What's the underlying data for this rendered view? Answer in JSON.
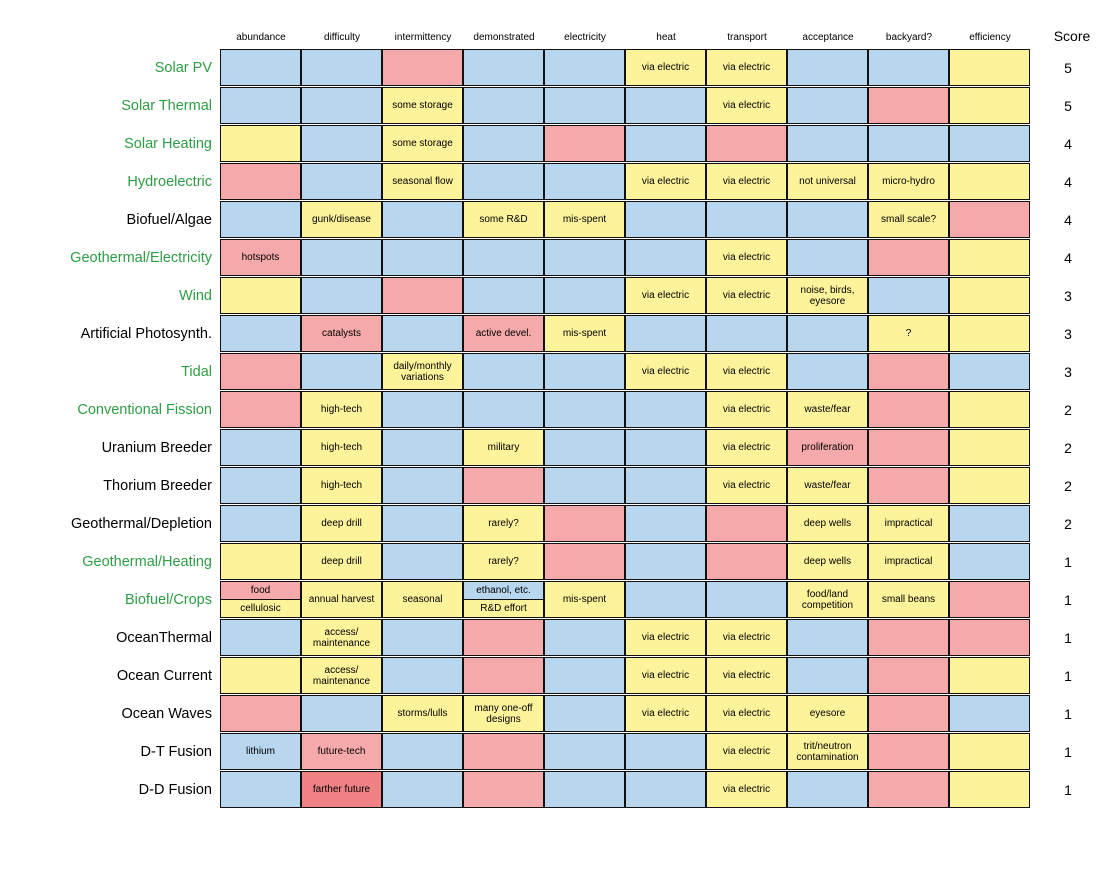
{
  "colors": {
    "B": "#b8d6ee",
    "Y": "#fdf39b",
    "R": "#f6a9aa",
    "D": "#f08285",
    "label_green": "#2e9d45",
    "label_black": "#000000"
  },
  "chart_data": {
    "type": "table",
    "title": "",
    "score_header": "Score",
    "columns": [
      "abundance",
      "difficulty",
      "intermittency",
      "demonstrated",
      "electricity",
      "heat",
      "transport",
      "acceptance",
      "backyard?",
      "efficiency"
    ],
    "legend_color_meaning": {
      "B": "blue",
      "Y": "yellow",
      "R": "red",
      "D": "dark red"
    },
    "rows": [
      {
        "name": "Solar PV",
        "label_color": "green",
        "score": "5",
        "cells": [
          {
            "c": "B",
            "t": ""
          },
          {
            "c": "B",
            "t": ""
          },
          {
            "c": "R",
            "t": ""
          },
          {
            "c": "B",
            "t": ""
          },
          {
            "c": "B",
            "t": ""
          },
          {
            "c": "Y",
            "t": "via electric"
          },
          {
            "c": "Y",
            "t": "via electric"
          },
          {
            "c": "B",
            "t": ""
          },
          {
            "c": "B",
            "t": ""
          },
          {
            "c": "Y",
            "t": ""
          }
        ]
      },
      {
        "name": "Solar Thermal",
        "label_color": "green",
        "score": "5",
        "cells": [
          {
            "c": "B",
            "t": ""
          },
          {
            "c": "B",
            "t": ""
          },
          {
            "c": "Y",
            "t": "some storage"
          },
          {
            "c": "B",
            "t": ""
          },
          {
            "c": "B",
            "t": ""
          },
          {
            "c": "B",
            "t": ""
          },
          {
            "c": "Y",
            "t": "via electric"
          },
          {
            "c": "B",
            "t": ""
          },
          {
            "c": "R",
            "t": ""
          },
          {
            "c": "Y",
            "t": ""
          }
        ]
      },
      {
        "name": "Solar Heating",
        "label_color": "green",
        "score": "4",
        "cells": [
          {
            "c": "Y",
            "t": ""
          },
          {
            "c": "B",
            "t": ""
          },
          {
            "c": "Y",
            "t": "some storage"
          },
          {
            "c": "B",
            "t": ""
          },
          {
            "c": "R",
            "t": ""
          },
          {
            "c": "B",
            "t": ""
          },
          {
            "c": "R",
            "t": ""
          },
          {
            "c": "B",
            "t": ""
          },
          {
            "c": "B",
            "t": ""
          },
          {
            "c": "B",
            "t": ""
          }
        ]
      },
      {
        "name": "Hydroelectric",
        "label_color": "green",
        "score": "4",
        "cells": [
          {
            "c": "R",
            "t": ""
          },
          {
            "c": "B",
            "t": ""
          },
          {
            "c": "Y",
            "t": "seasonal flow"
          },
          {
            "c": "B",
            "t": ""
          },
          {
            "c": "B",
            "t": ""
          },
          {
            "c": "Y",
            "t": "via electric"
          },
          {
            "c": "Y",
            "t": "via electric"
          },
          {
            "c": "Y",
            "t": "not universal"
          },
          {
            "c": "Y",
            "t": "micro-hydro"
          },
          {
            "c": "Y",
            "t": ""
          }
        ]
      },
      {
        "name": "Biofuel/Algae",
        "label_color": "black",
        "score": "4",
        "cells": [
          {
            "c": "B",
            "t": ""
          },
          {
            "c": "Y",
            "t": "gunk/disease"
          },
          {
            "c": "B",
            "t": ""
          },
          {
            "c": "Y",
            "t": "some R&D"
          },
          {
            "c": "Y",
            "t": "mis-spent"
          },
          {
            "c": "B",
            "t": ""
          },
          {
            "c": "B",
            "t": ""
          },
          {
            "c": "B",
            "t": ""
          },
          {
            "c": "Y",
            "t": "small scale?"
          },
          {
            "c": "R",
            "t": ""
          }
        ]
      },
      {
        "name": "Geothermal/Electricity",
        "label_color": "green",
        "score": "4",
        "cells": [
          {
            "c": "R",
            "t": "hotspots"
          },
          {
            "c": "B",
            "t": ""
          },
          {
            "c": "B",
            "t": ""
          },
          {
            "c": "B",
            "t": ""
          },
          {
            "c": "B",
            "t": ""
          },
          {
            "c": "B",
            "t": ""
          },
          {
            "c": "Y",
            "t": "via electric"
          },
          {
            "c": "B",
            "t": ""
          },
          {
            "c": "R",
            "t": ""
          },
          {
            "c": "Y",
            "t": ""
          }
        ]
      },
      {
        "name": "Wind",
        "label_color": "green",
        "score": "3",
        "cells": [
          {
            "c": "Y",
            "t": ""
          },
          {
            "c": "B",
            "t": ""
          },
          {
            "c": "R",
            "t": ""
          },
          {
            "c": "B",
            "t": ""
          },
          {
            "c": "B",
            "t": ""
          },
          {
            "c": "Y",
            "t": "via electric"
          },
          {
            "c": "Y",
            "t": "via electric"
          },
          {
            "c": "Y",
            "t": "noise, birds, eyesore"
          },
          {
            "c": "B",
            "t": ""
          },
          {
            "c": "Y",
            "t": ""
          }
        ]
      },
      {
        "name": "Artificial Photosynth.",
        "label_color": "black",
        "score": "3",
        "cells": [
          {
            "c": "B",
            "t": ""
          },
          {
            "c": "R",
            "t": "catalysts"
          },
          {
            "c": "B",
            "t": ""
          },
          {
            "c": "R",
            "t": "active devel."
          },
          {
            "c": "Y",
            "t": "mis-spent"
          },
          {
            "c": "B",
            "t": ""
          },
          {
            "c": "B",
            "t": ""
          },
          {
            "c": "B",
            "t": ""
          },
          {
            "c": "Y",
            "t": "?"
          },
          {
            "c": "Y",
            "t": ""
          }
        ]
      },
      {
        "name": "Tidal",
        "label_color": "green",
        "score": "3",
        "cells": [
          {
            "c": "R",
            "t": ""
          },
          {
            "c": "B",
            "t": ""
          },
          {
            "c": "Y",
            "t": "daily/monthly variations"
          },
          {
            "c": "B",
            "t": ""
          },
          {
            "c": "B",
            "t": ""
          },
          {
            "c": "Y",
            "t": "via electric"
          },
          {
            "c": "Y",
            "t": "via electric"
          },
          {
            "c": "B",
            "t": ""
          },
          {
            "c": "R",
            "t": ""
          },
          {
            "c": "B",
            "t": ""
          }
        ]
      },
      {
        "name": "Conventional Fission",
        "label_color": "green",
        "score": "2",
        "cells": [
          {
            "c": "R",
            "t": ""
          },
          {
            "c": "Y",
            "t": "high-tech"
          },
          {
            "c": "B",
            "t": ""
          },
          {
            "c": "B",
            "t": ""
          },
          {
            "c": "B",
            "t": ""
          },
          {
            "c": "B",
            "t": ""
          },
          {
            "c": "Y",
            "t": "via electric"
          },
          {
            "c": "Y",
            "t": "waste/fear"
          },
          {
            "c": "R",
            "t": ""
          },
          {
            "c": "Y",
            "t": ""
          }
        ]
      },
      {
        "name": "Uranium Breeder",
        "label_color": "black",
        "score": "2",
        "cells": [
          {
            "c": "B",
            "t": ""
          },
          {
            "c": "Y",
            "t": "high-tech"
          },
          {
            "c": "B",
            "t": ""
          },
          {
            "c": "Y",
            "t": "military"
          },
          {
            "c": "B",
            "t": ""
          },
          {
            "c": "B",
            "t": ""
          },
          {
            "c": "Y",
            "t": "via electric"
          },
          {
            "c": "R",
            "t": "proliferation"
          },
          {
            "c": "R",
            "t": ""
          },
          {
            "c": "Y",
            "t": ""
          }
        ]
      },
      {
        "name": "Thorium Breeder",
        "label_color": "black",
        "score": "2",
        "cells": [
          {
            "c": "B",
            "t": ""
          },
          {
            "c": "Y",
            "t": "high-tech"
          },
          {
            "c": "B",
            "t": ""
          },
          {
            "c": "R",
            "t": ""
          },
          {
            "c": "B",
            "t": ""
          },
          {
            "c": "B",
            "t": ""
          },
          {
            "c": "Y",
            "t": "via electric"
          },
          {
            "c": "Y",
            "t": "waste/fear"
          },
          {
            "c": "R",
            "t": ""
          },
          {
            "c": "Y",
            "t": ""
          }
        ]
      },
      {
        "name": "Geothermal/Depletion",
        "label_color": "black",
        "score": "2",
        "cells": [
          {
            "c": "B",
            "t": ""
          },
          {
            "c": "Y",
            "t": "deep drill"
          },
          {
            "c": "B",
            "t": ""
          },
          {
            "c": "Y",
            "t": "rarely?"
          },
          {
            "c": "R",
            "t": ""
          },
          {
            "c": "B",
            "t": ""
          },
          {
            "c": "R",
            "t": ""
          },
          {
            "c": "Y",
            "t": "deep wells"
          },
          {
            "c": "Y",
            "t": "impractical"
          },
          {
            "c": "B",
            "t": ""
          }
        ]
      },
      {
        "name": "Geothermal/Heating",
        "label_color": "green",
        "score": "1",
        "cells": [
          {
            "c": "Y",
            "t": ""
          },
          {
            "c": "Y",
            "t": "deep drill"
          },
          {
            "c": "B",
            "t": ""
          },
          {
            "c": "Y",
            "t": "rarely?"
          },
          {
            "c": "R",
            "t": ""
          },
          {
            "c": "B",
            "t": ""
          },
          {
            "c": "R",
            "t": ""
          },
          {
            "c": "Y",
            "t": "deep wells"
          },
          {
            "c": "Y",
            "t": "impractical"
          },
          {
            "c": "B",
            "t": ""
          }
        ]
      },
      {
        "name": "Biofuel/Crops",
        "label_color": "green",
        "score": "1",
        "cells": [
          {
            "split": [
              {
                "c": "R",
                "t": "food"
              },
              {
                "c": "Y",
                "t": "cellulosic"
              }
            ]
          },
          {
            "c": "Y",
            "t": "annual harvest"
          },
          {
            "c": "Y",
            "t": "seasonal"
          },
          {
            "split": [
              {
                "c": "B",
                "t": "ethanol, etc."
              },
              {
                "c": "Y",
                "t": "R&D effort"
              }
            ]
          },
          {
            "c": "Y",
            "t": "mis-spent"
          },
          {
            "c": "B",
            "t": ""
          },
          {
            "c": "B",
            "t": ""
          },
          {
            "c": "Y",
            "t": "food/land competition"
          },
          {
            "c": "Y",
            "t": "small beans"
          },
          {
            "c": "R",
            "t": ""
          }
        ]
      },
      {
        "name": "OceanThermal",
        "label_color": "black",
        "score": "1",
        "cells": [
          {
            "c": "B",
            "t": ""
          },
          {
            "c": "Y",
            "t": "access/ maintenance"
          },
          {
            "c": "B",
            "t": ""
          },
          {
            "c": "R",
            "t": ""
          },
          {
            "c": "B",
            "t": ""
          },
          {
            "c": "Y",
            "t": "via electric"
          },
          {
            "c": "Y",
            "t": "via electric"
          },
          {
            "c": "B",
            "t": ""
          },
          {
            "c": "R",
            "t": ""
          },
          {
            "c": "R",
            "t": ""
          }
        ]
      },
      {
        "name": "Ocean Current",
        "label_color": "black",
        "score": "1",
        "cells": [
          {
            "c": "Y",
            "t": ""
          },
          {
            "c": "Y",
            "t": "access/ maintenance"
          },
          {
            "c": "B",
            "t": ""
          },
          {
            "c": "R",
            "t": ""
          },
          {
            "c": "B",
            "t": ""
          },
          {
            "c": "Y",
            "t": "via electric"
          },
          {
            "c": "Y",
            "t": "via electric"
          },
          {
            "c": "B",
            "t": ""
          },
          {
            "c": "R",
            "t": ""
          },
          {
            "c": "Y",
            "t": ""
          }
        ]
      },
      {
        "name": "Ocean Waves",
        "label_color": "black",
        "score": "1",
        "cells": [
          {
            "c": "R",
            "t": ""
          },
          {
            "c": "B",
            "t": ""
          },
          {
            "c": "Y",
            "t": "storms/lulls"
          },
          {
            "c": "Y",
            "t": "many one-off designs"
          },
          {
            "c": "B",
            "t": ""
          },
          {
            "c": "Y",
            "t": "via electric"
          },
          {
            "c": "Y",
            "t": "via electric"
          },
          {
            "c": "Y",
            "t": "eyesore"
          },
          {
            "c": "R",
            "t": ""
          },
          {
            "c": "B",
            "t": ""
          }
        ]
      },
      {
        "name": "D-T Fusion",
        "label_color": "black",
        "score": "1",
        "cells": [
          {
            "c": "B",
            "t": "lithium"
          },
          {
            "c": "R",
            "t": "future-tech"
          },
          {
            "c": "B",
            "t": ""
          },
          {
            "c": "R",
            "t": ""
          },
          {
            "c": "B",
            "t": ""
          },
          {
            "c": "B",
            "t": ""
          },
          {
            "c": "Y",
            "t": "via electric"
          },
          {
            "c": "Y",
            "t": "trit/neutron contamination"
          },
          {
            "c": "R",
            "t": ""
          },
          {
            "c": "Y",
            "t": ""
          }
        ]
      },
      {
        "name": "D-D Fusion",
        "label_color": "black",
        "score": "1",
        "cells": [
          {
            "c": "B",
            "t": ""
          },
          {
            "c": "D",
            "t": "farther future"
          },
          {
            "c": "B",
            "t": ""
          },
          {
            "c": "R",
            "t": ""
          },
          {
            "c": "B",
            "t": ""
          },
          {
            "c": "B",
            "t": ""
          },
          {
            "c": "Y",
            "t": "via electric"
          },
          {
            "c": "B",
            "t": ""
          },
          {
            "c": "R",
            "t": ""
          },
          {
            "c": "Y",
            "t": ""
          }
        ]
      }
    ]
  }
}
